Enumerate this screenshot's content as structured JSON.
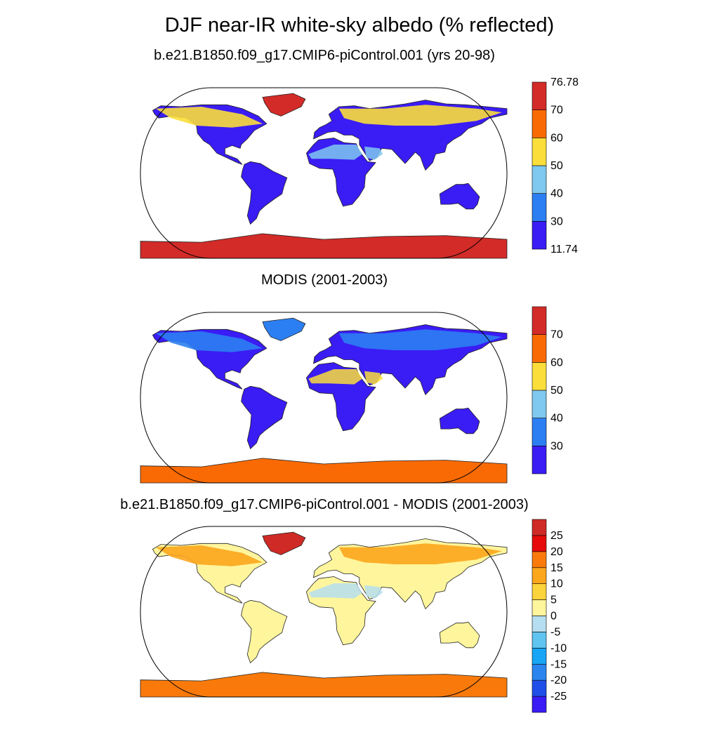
{
  "title": "DJF near-IR white-sky albedo (% reflected)",
  "panels": [
    {
      "subtitle": "b.e21.B1850.f09_g17.CMIP6-piControl.001 (yrs 20-98)",
      "colorbar": {
        "colors": [
          "#3a1cf5",
          "#2c7ff2",
          "#7fc8ef",
          "#fbde3a",
          "#f96a04",
          "#d22b28"
        ],
        "labels": [
          "76.78",
          "70",
          "60",
          "50",
          "40",
          "30",
          "11.74"
        ]
      }
    },
    {
      "subtitle": "MODIS (2001-2003)",
      "colorbar": {
        "colors": [
          "#3a1cf5",
          "#2c7ff2",
          "#7fc8ef",
          "#fbde3a",
          "#f96a04",
          "#d22b28"
        ],
        "labels": [
          "70",
          "60",
          "50",
          "40",
          "30"
        ]
      }
    },
    {
      "subtitle": "b.e21.B1850.f09_g17.CMIP6-piControl.001 - MODIS (2001-2003)",
      "colorbar": {
        "colors": [
          "#3a1cf5",
          "#1f4fe8",
          "#2a86ee",
          "#16a6f5",
          "#5fc4f0",
          "#b5def0",
          "#fff59c",
          "#fbd33a",
          "#fca61c",
          "#f97a0a",
          "#e60a0a",
          "#cf2a26"
        ],
        "labels": [
          "25",
          "20",
          "15",
          "10",
          "5",
          "0",
          "-5",
          "-10",
          "-15",
          "-20",
          "-25"
        ]
      }
    }
  ]
}
